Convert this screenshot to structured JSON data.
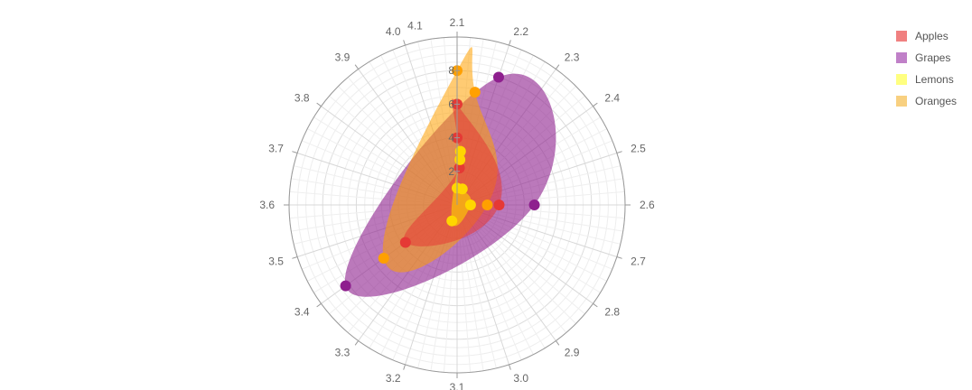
{
  "chart_data": {
    "type": "polar-area-spline",
    "angle_start": 2.1,
    "angle_end": 4.1,
    "angle_ticks": [
      "2.1",
      "2.2",
      "2.3",
      "2.4",
      "2.5",
      "2.6",
      "2.7",
      "2.8",
      "2.9",
      "3.0",
      "3.1",
      "3.2",
      "3.3",
      "3.4",
      "3.5",
      "3.6",
      "3.7",
      "3.8",
      "3.9",
      "4.0",
      "4.1"
    ],
    "radius_max": 10,
    "radius_ticks": [
      "2",
      "4",
      "6",
      "8"
    ],
    "grid": true,
    "legend_position": "top-right",
    "series": [
      {
        "name": "Apples",
        "color": "#e53935",
        "points": [
          [
            2.1,
            6.0
          ],
          [
            2.6,
            2.5
          ],
          [
            3.4,
            3.8
          ],
          [
            2.12,
            2.2
          ],
          [
            2.1,
            4.0
          ]
        ]
      },
      {
        "name": "Grapes",
        "color": "#8e1f8e",
        "points": [
          [
            2.2,
            8.0
          ],
          [
            2.6,
            4.6
          ],
          [
            3.4,
            8.2
          ]
        ]
      },
      {
        "name": "Lemons",
        "color": "#ffd600",
        "points": [
          [
            2.12,
            3.2
          ],
          [
            2.12,
            2.7
          ],
          [
            2.1,
            1.0
          ],
          [
            2.2,
            1.0
          ],
          [
            2.6,
            0.8
          ],
          [
            3.2,
            1.0
          ]
        ]
      },
      {
        "name": "Oranges",
        "color": "#ffa000",
        "points": [
          [
            2.1,
            8.0
          ],
          [
            2.15,
            6.8
          ],
          [
            2.6,
            1.8
          ],
          [
            3.4,
            5.4
          ]
        ]
      }
    ]
  },
  "legend": {
    "items": [
      {
        "label": "Apples",
        "color": "#f08080"
      },
      {
        "label": "Grapes",
        "color": "#c080c8"
      },
      {
        "label": "Lemons",
        "color": "#ffff80"
      },
      {
        "label": "Oranges",
        "color": "#f8d080"
      }
    ]
  }
}
